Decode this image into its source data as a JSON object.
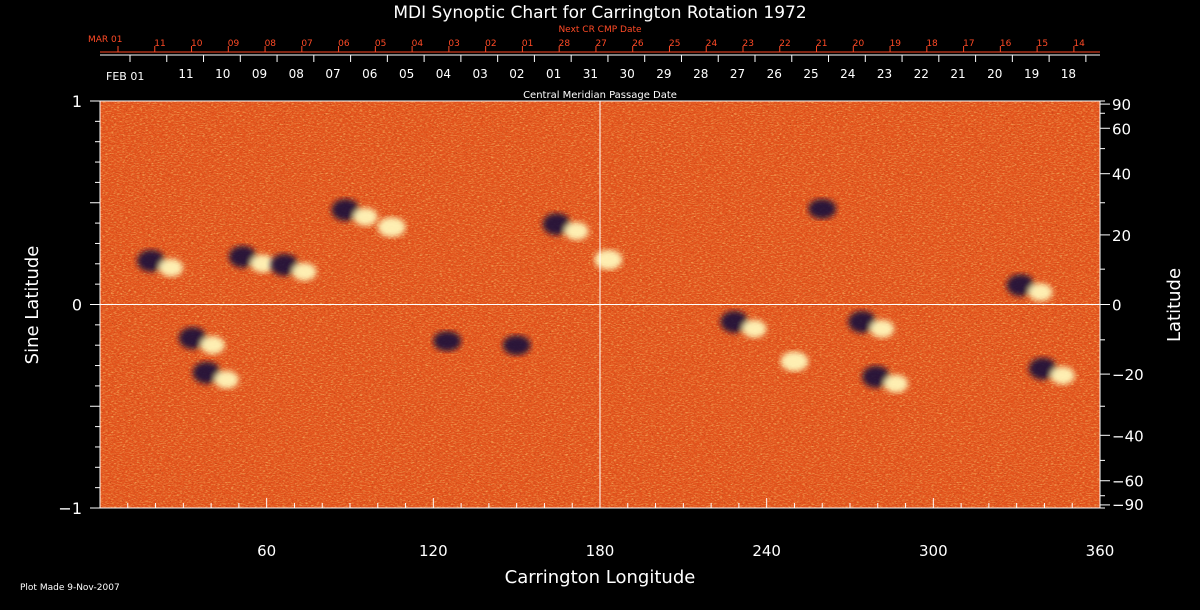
{
  "chart_data": {
    "type": "heatmap",
    "title": "MDI Synoptic Chart for Carrington Rotation 1972",
    "xlabel": "Carrington Longitude",
    "ylabel_left": "Sine Latitude",
    "ylabel_right": "Latitude",
    "xlim": [
      0,
      360
    ],
    "ylim": [
      -1,
      1
    ],
    "x_ticks": [
      60,
      120,
      180,
      240,
      300,
      360
    ],
    "left_ticks": [
      {
        "value": 1,
        "label": "1"
      },
      {
        "value": 0,
        "label": "0"
      },
      {
        "value": -1,
        "label": "−1"
      }
    ],
    "right_ticks": [
      {
        "lat": 90,
        "label": "90"
      },
      {
        "lat": 60,
        "label": "60"
      },
      {
        "lat": 40,
        "label": "40"
      },
      {
        "lat": 20,
        "label": "20"
      },
      {
        "lat": 0,
        "label": "0"
      },
      {
        "lat": -20,
        "label": "−20"
      },
      {
        "lat": -40,
        "label": "−40"
      },
      {
        "lat": -60,
        "label": "−60"
      },
      {
        "lat": -90,
        "label": "−90"
      }
    ],
    "cmp_axis": {
      "label": "Central Meridian Passage Date",
      "start_label": "FEB 01",
      "dates": [
        "11",
        "10",
        "09",
        "08",
        "07",
        "06",
        "05",
        "04",
        "03",
        "02",
        "01",
        "31",
        "30",
        "29",
        "28",
        "27",
        "26",
        "25",
        "24",
        "23",
        "22",
        "21",
        "20",
        "19",
        "18"
      ]
    },
    "next_cmp_axis": {
      "label": "Next CR CMP Date",
      "start_label": "MAR 01",
      "dates": [
        "11",
        "10",
        "09",
        "08",
        "07",
        "06",
        "05",
        "04",
        "03",
        "02",
        "01",
        "28",
        "27",
        "26",
        "25",
        "24",
        "23",
        "22",
        "21",
        "20",
        "19",
        "18",
        "17",
        "16",
        "15",
        "14"
      ]
    },
    "footer": "Plot Made  9-Nov-2007",
    "grid": "cross lines at longitude 180 and sine latitude 0",
    "colormap": "positive field white/yellow, neutral orange-red, negative field dark blue/black",
    "active_regions": [
      {
        "lon": 22,
        "sinlat": 0.2,
        "polarity": "bipolar"
      },
      {
        "lon": 55,
        "sinlat": 0.22,
        "polarity": "bipolar"
      },
      {
        "lon": 70,
        "sinlat": 0.18,
        "polarity": "bipolar"
      },
      {
        "lon": 92,
        "sinlat": 0.45,
        "polarity": "bipolar"
      },
      {
        "lon": 105,
        "sinlat": 0.38,
        "polarity": "positive"
      },
      {
        "lon": 168,
        "sinlat": 0.38,
        "polarity": "bipolar"
      },
      {
        "lon": 183,
        "sinlat": 0.22,
        "polarity": "positive"
      },
      {
        "lon": 232,
        "sinlat": -0.1,
        "polarity": "bipolar"
      },
      {
        "lon": 260,
        "sinlat": 0.47,
        "polarity": "negative"
      },
      {
        "lon": 278,
        "sinlat": -0.1,
        "polarity": "bipolar"
      },
      {
        "lon": 283,
        "sinlat": -0.37,
        "polarity": "bipolar"
      },
      {
        "lon": 335,
        "sinlat": 0.08,
        "polarity": "bipolar"
      },
      {
        "lon": 42,
        "sinlat": -0.35,
        "polarity": "bipolar"
      },
      {
        "lon": 37,
        "sinlat": -0.18,
        "polarity": "bipolar"
      },
      {
        "lon": 125,
        "sinlat": -0.18,
        "polarity": "negative"
      },
      {
        "lon": 150,
        "sinlat": -0.2,
        "polarity": "negative"
      },
      {
        "lon": 250,
        "sinlat": -0.28,
        "polarity": "positive"
      },
      {
        "lon": 343,
        "sinlat": -0.33,
        "polarity": "bipolar"
      }
    ]
  },
  "colors": {
    "background": "#000000",
    "text": "#ffffff",
    "next_cmp": "#ff4a26",
    "field_neutral": "#e2531c",
    "field_positive": "#fff6b8",
    "field_negative": "#14103a"
  }
}
